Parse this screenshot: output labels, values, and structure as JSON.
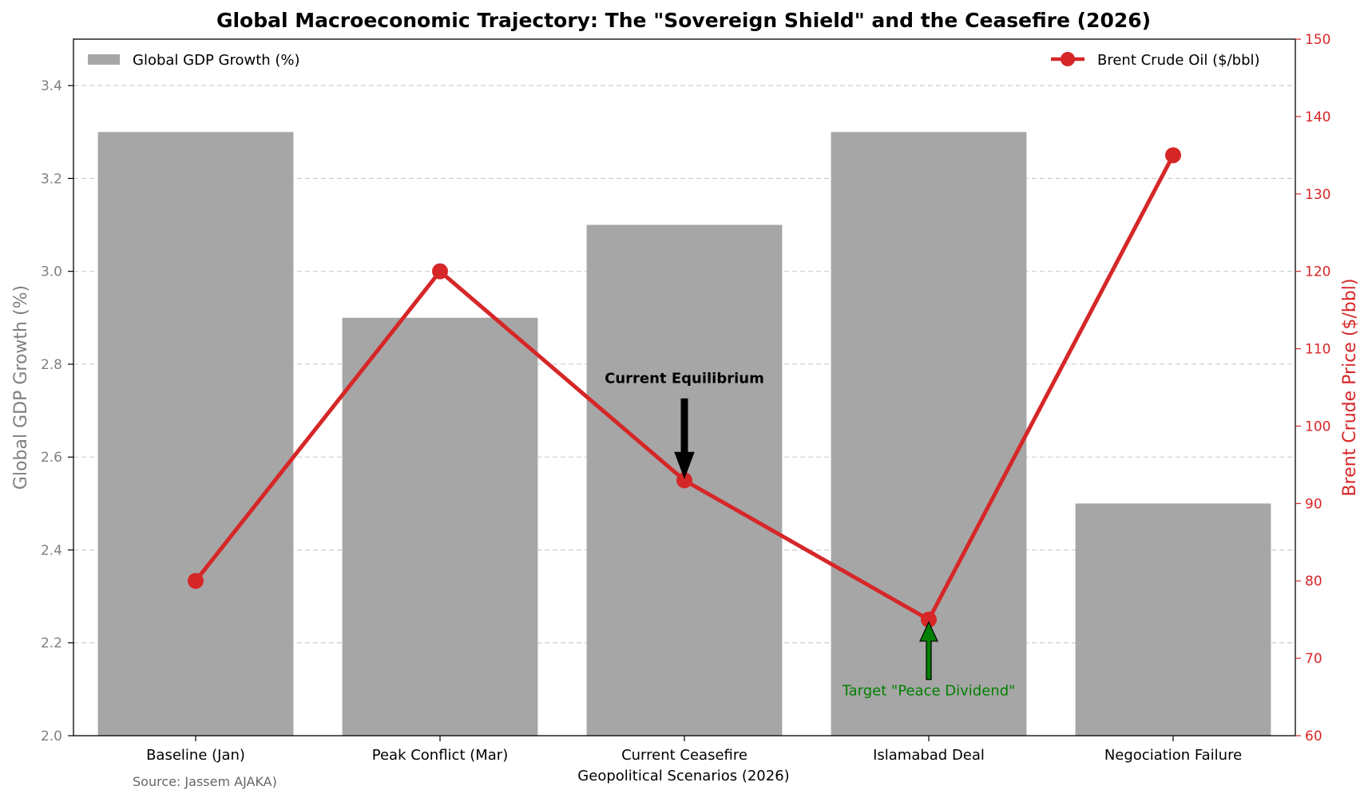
{
  "chart_data": {
    "type": "bar",
    "title": "Global Macroeconomic Trajectory: The \"Sovereign Shield\" and the Ceasefire (2026)",
    "xlabel": "Geopolitical Scenarios (2026)",
    "ylabel": "Global GDP Growth (%)",
    "y2label": "Brent Crude Price ($/bbl)",
    "categories": [
      "Baseline (Jan)",
      "Peak Conflict (Mar)",
      "Current Ceasefire",
      "Islamabad Deal",
      "Negociation Failure"
    ],
    "ylim": [
      2.0,
      3.5
    ],
    "y2lim": [
      60,
      150
    ],
    "yticks": [
      "2.0",
      "2.2",
      "2.4",
      "2.6",
      "2.8",
      "3.0",
      "3.2",
      "3.4"
    ],
    "y2ticks": [
      "60",
      "70",
      "80",
      "90",
      "100",
      "110",
      "120",
      "130",
      "140",
      "150"
    ],
    "grid": "y-dashed",
    "series": [
      {
        "name": "Global GDP Growth (%)",
        "type": "bar",
        "axis": "left",
        "values": [
          3.3,
          2.9,
          3.1,
          3.3,
          2.5
        ]
      },
      {
        "name": "Brent Crude Oil ($/bbl)",
        "type": "line",
        "axis": "right",
        "values": [
          80,
          120,
          93,
          75,
          135
        ]
      }
    ],
    "legend": {
      "left_placement": "top-left",
      "right_placement": "top-right"
    },
    "annotations": [
      {
        "text": "Current Equilibrium",
        "category": "Current Ceasefire",
        "arrow": "down"
      },
      {
        "text": "Target \"Peace Dividend\"",
        "category": "Islamabad Deal",
        "arrow": "up"
      }
    ],
    "source": "Source: Jassem AJAKA)",
    "colors": {
      "bar": "#a6a6a6",
      "line": "#d62728",
      "left_axis_text": "#808080",
      "right_axis_text": "#d62728",
      "annotation_peace": "#008000",
      "grid": "#cccccc"
    }
  }
}
